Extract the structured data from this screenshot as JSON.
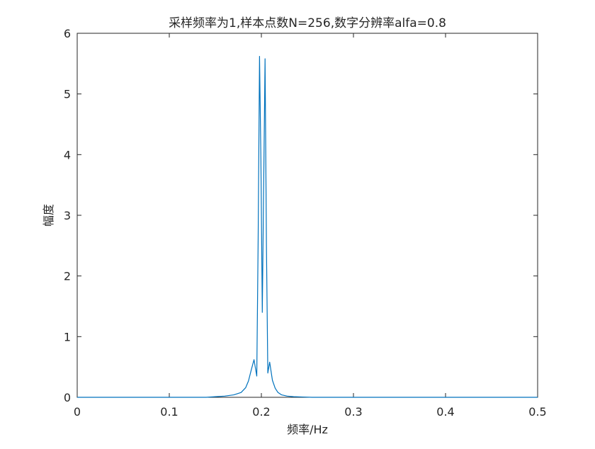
{
  "chart_data": {
    "type": "line",
    "title": "采样频率为1,样本点数N=256,数字分辨率alfa=0.8",
    "xlabel": "频率/Hz",
    "ylabel": "幅度",
    "xlim": [
      0,
      0.5
    ],
    "ylim": [
      0,
      6
    ],
    "xticks": [
      0,
      0.1,
      0.2,
      0.3,
      0.4,
      0.5
    ],
    "xtick_labels": [
      "0",
      "0.1",
      "0.2",
      "0.3",
      "0.4",
      "0.5"
    ],
    "yticks": [
      0,
      1,
      2,
      3,
      4,
      5,
      6
    ],
    "ytick_labels": [
      "0",
      "1",
      "2",
      "3",
      "4",
      "5",
      "6"
    ],
    "grid": false,
    "legend": "none",
    "line_color": "#0072BD",
    "series": [
      {
        "x": [
          0,
          0.14,
          0.15,
          0.16,
          0.17,
          0.178,
          0.183,
          0.186,
          0.189,
          0.192,
          0.195,
          0.1965,
          0.198,
          0.1995,
          0.201,
          0.2025,
          0.204,
          0.2055,
          0.207,
          0.209,
          0.212,
          0.215,
          0.218,
          0.222,
          0.228,
          0.235,
          0.245,
          0.255,
          0.5
        ],
        "y": [
          0,
          0,
          0.01,
          0.02,
          0.04,
          0.08,
          0.16,
          0.27,
          0.45,
          0.62,
          0.35,
          2.6,
          5.62,
          3.9,
          1.4,
          3.5,
          5.58,
          2.5,
          0.4,
          0.58,
          0.28,
          0.15,
          0.08,
          0.04,
          0.02,
          0.01,
          0.005,
          0,
          0
        ]
      }
    ]
  }
}
